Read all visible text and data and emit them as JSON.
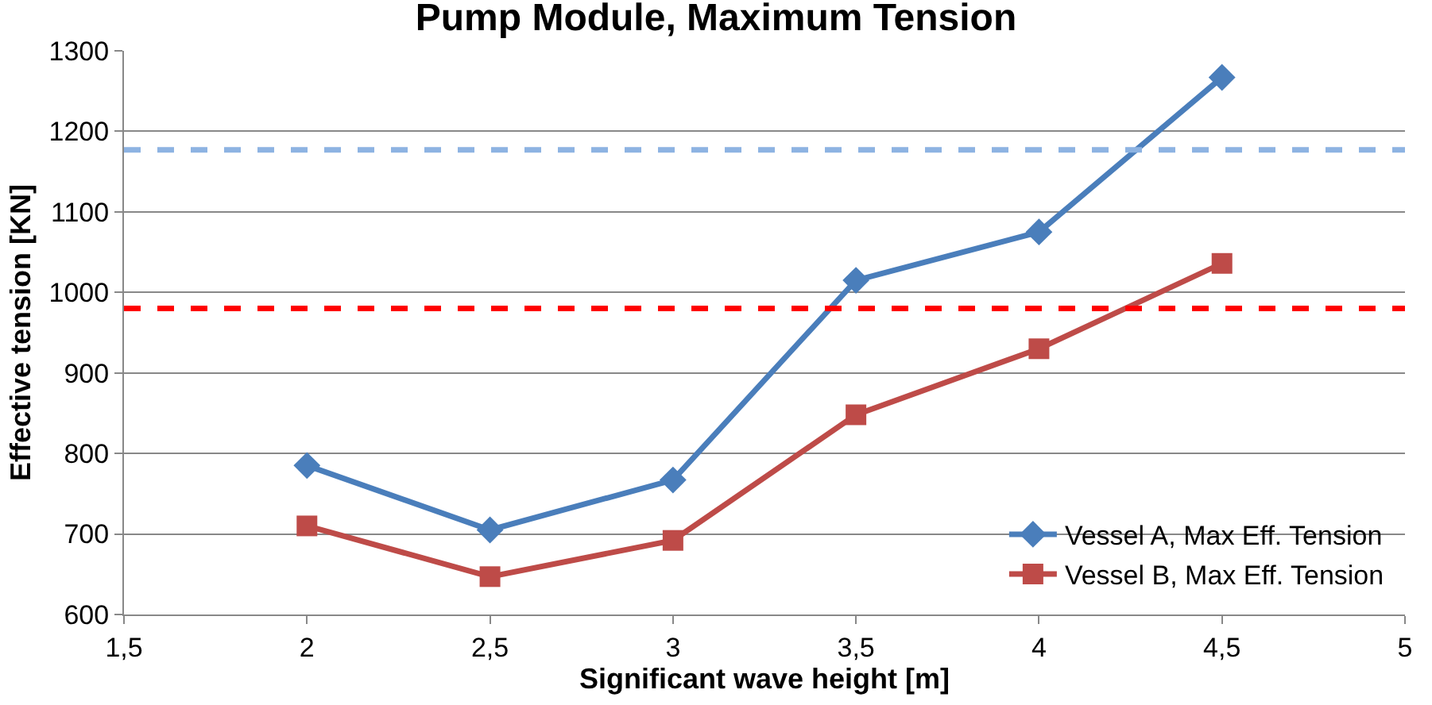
{
  "chart_data": {
    "type": "line",
    "title": "Pump Module, Maximum Tension",
    "xlabel": "Significant wave height [m]",
    "ylabel": "Effective tension [KN]",
    "x": [
      2,
      2.5,
      3,
      3.5,
      4,
      4.5
    ],
    "series": [
      {
        "name": "Vessel A, Max Eff. Tension",
        "color": "#4a7ebb",
        "marker": "diamond",
        "values": [
          785,
          705,
          767,
          1015,
          1075,
          1267
        ]
      },
      {
        "name": "Vessel B, Max Eff. Tension",
        "color": "#be4b48",
        "marker": "square",
        "values": [
          710,
          647,
          692,
          848,
          930,
          1036
        ]
      }
    ],
    "xlim": [
      1.5,
      5
    ],
    "xticks": [
      {
        "value": 1.5,
        "label": "1,5"
      },
      2,
      {
        "value": 2.5,
        "label": "2,5"
      },
      3,
      {
        "value": 3.5,
        "label": "3,5"
      },
      4,
      {
        "value": 4.5,
        "label": "4,5"
      },
      5
    ],
    "ylim": [
      600,
      1300
    ],
    "yticks": [
      600,
      700,
      800,
      900,
      1000,
      1100,
      1200,
      1300
    ],
    "ref_lines": [
      {
        "axis": "y",
        "value": 1177,
        "color": "#8db3e2",
        "line_style": "dashed"
      },
      {
        "axis": "y",
        "value": 980,
        "color": "#ff0000",
        "line_style": "dashed"
      }
    ],
    "grid": "y",
    "legend": "bottom right",
    "line_style": "solid"
  }
}
